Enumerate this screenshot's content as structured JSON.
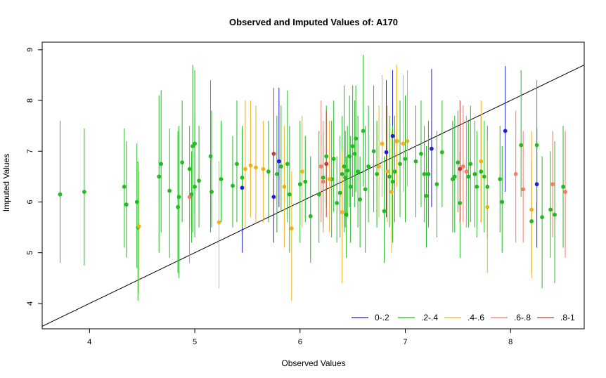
{
  "chart_data": {
    "type": "scatter",
    "title": "Observed and Imputed Values of: A170",
    "xlabel": "Observed Values",
    "ylabel": "Imputed Values",
    "xlim": [
      3.55,
      8.7
    ],
    "ylim": [
      3.5,
      9.15
    ],
    "xticks": [
      "4",
      "5",
      "6",
      "7",
      "8"
    ],
    "yticks": [
      "4",
      "5",
      "6",
      "7",
      "8",
      "9"
    ],
    "reference_line": {
      "intercept": 0,
      "slope": 1,
      "color": "#000000"
    },
    "legend": {
      "position": "bottom-right"
    },
    "series": [
      {
        "name": "0-.2",
        "color": "#1f1fd6",
        "points": [
          [
            5.45,
            6.28,
            5.0,
            7.4
          ],
          [
            5.75,
            6.1,
            5.2,
            7.0
          ],
          [
            5.8,
            6.8,
            5.9,
            8.25
          ],
          [
            6.82,
            6.98,
            5.7,
            8.4
          ],
          [
            6.88,
            7.3,
            6.2,
            8.6
          ],
          [
            6.92,
            7.2,
            6.3,
            8.5
          ],
          [
            7.25,
            7.05,
            5.9,
            8.62
          ],
          [
            7.95,
            7.4,
            6.2,
            8.68
          ],
          [
            8.25,
            6.35,
            5.1,
            7.45
          ]
        ]
      },
      {
        "name": ".2-.4",
        "color": "#22bb22",
        "points": [
          [
            3.72,
            6.15,
            4.8,
            7.6
          ],
          [
            3.95,
            6.2,
            4.75,
            7.45
          ],
          [
            4.33,
            6.3,
            5.1,
            7.45
          ],
          [
            4.35,
            5.95,
            4.9,
            7.2
          ],
          [
            4.45,
            6.0,
            4.7,
            7.15
          ],
          [
            4.46,
            5.5,
            4.05,
            6.8
          ],
          [
            4.66,
            6.5,
            5.0,
            8.1
          ],
          [
            4.68,
            6.75,
            5.4,
            8.2
          ],
          [
            4.76,
            6.22,
            4.9,
            7.45
          ],
          [
            4.84,
            5.9,
            4.6,
            7.4
          ],
          [
            4.85,
            6.1,
            4.5,
            7.5
          ],
          [
            4.88,
            6.78,
            5.6,
            8.0
          ],
          [
            4.95,
            6.65,
            5.5,
            7.5
          ],
          [
            4.97,
            6.15,
            5.2,
            7.0
          ],
          [
            4.98,
            7.1,
            5.4,
            8.7
          ],
          [
            5.0,
            7.15,
            5.8,
            8.6
          ],
          [
            5.0,
            6.3,
            5.3,
            7.7
          ],
          [
            5.04,
            6.42,
            5.5,
            7.5
          ],
          [
            5.15,
            6.9,
            5.4,
            8.4
          ],
          [
            5.16,
            6.2,
            5.5,
            7.8
          ],
          [
            5.25,
            6.45,
            5.6,
            7.6
          ],
          [
            5.36,
            6.32,
            5.5,
            7.3
          ],
          [
            5.4,
            6.75,
            5.6,
            8.0
          ],
          [
            5.45,
            6.48,
            5.5,
            7.5
          ],
          [
            5.7,
            6.6,
            5.6,
            7.6
          ],
          [
            5.78,
            6.55,
            5.4,
            7.7
          ],
          [
            5.82,
            6.7,
            5.8,
            7.9
          ],
          [
            5.88,
            6.75,
            5.6,
            8.2
          ],
          [
            5.9,
            6.15,
            5.0,
            7.5
          ],
          [
            6.0,
            6.35,
            5.2,
            7.6
          ],
          [
            6.05,
            6.4,
            5.6,
            7.3
          ],
          [
            6.1,
            5.72,
            4.8,
            6.9
          ],
          [
            6.18,
            6.15,
            5.2,
            7.4
          ],
          [
            6.22,
            6.48,
            5.5,
            7.4
          ],
          [
            6.25,
            6.9,
            5.9,
            7.9
          ],
          [
            6.3,
            6.45,
            5.3,
            7.6
          ],
          [
            6.32,
            6.85,
            5.8,
            8.0
          ],
          [
            6.35,
            5.98,
            5.2,
            6.9
          ],
          [
            6.38,
            6.18,
            5.3,
            7.3
          ],
          [
            6.4,
            6.55,
            5.5,
            7.7
          ],
          [
            6.42,
            6.7,
            5.4,
            8.3
          ],
          [
            6.43,
            6.48,
            5.5,
            7.4
          ],
          [
            6.44,
            5.75,
            4.9,
            6.9
          ],
          [
            6.45,
            6.62,
            5.7,
            7.5
          ],
          [
            6.47,
            6.9,
            5.9,
            8.1
          ],
          [
            6.48,
            6.3,
            5.2,
            7.3
          ],
          [
            6.5,
            7.1,
            6.1,
            8.3
          ],
          [
            6.52,
            6.95,
            5.9,
            8.0
          ],
          [
            6.53,
            7.25,
            6.2,
            8.3
          ],
          [
            6.55,
            6.6,
            5.5,
            7.7
          ],
          [
            6.57,
            6.05,
            5.1,
            6.9
          ],
          [
            6.6,
            7.4,
            6.3,
            8.9
          ],
          [
            6.62,
            6.25,
            5.0,
            7.5
          ],
          [
            6.65,
            6.7,
            5.6,
            7.9
          ],
          [
            6.7,
            7.0,
            5.8,
            8.3
          ],
          [
            6.73,
            6.55,
            5.5,
            7.6
          ],
          [
            6.8,
            5.82,
            4.8,
            6.9
          ],
          [
            6.85,
            6.5,
            5.5,
            7.7
          ],
          [
            6.88,
            6.4,
            5.2,
            7.5
          ],
          [
            6.9,
            6.6,
            5.6,
            7.7
          ],
          [
            6.95,
            6.75,
            5.7,
            8.0
          ],
          [
            7.0,
            6.85,
            5.6,
            8.1
          ],
          [
            7.1,
            6.8,
            5.7,
            7.9
          ],
          [
            7.15,
            6.95,
            5.9,
            8.0
          ],
          [
            7.18,
            6.55,
            5.6,
            7.5
          ],
          [
            7.2,
            6.12,
            5.1,
            7.1
          ],
          [
            7.22,
            6.55,
            5.5,
            7.6
          ],
          [
            7.3,
            6.35,
            5.3,
            7.4
          ],
          [
            7.35,
            6.98,
            5.9,
            8.0
          ],
          [
            7.45,
            6.45,
            5.4,
            7.6
          ],
          [
            7.47,
            6.5,
            5.4,
            7.7
          ],
          [
            7.5,
            6.78,
            5.8,
            7.8
          ],
          [
            7.52,
            5.98,
            4.9,
            7.0
          ],
          [
            7.6,
            6.5,
            5.5,
            7.6
          ],
          [
            7.62,
            6.75,
            5.6,
            7.9
          ],
          [
            7.66,
            6.55,
            5.5,
            7.6
          ],
          [
            7.68,
            6.3,
            5.3,
            7.4
          ],
          [
            7.72,
            6.6,
            5.6,
            7.7
          ],
          [
            7.75,
            6.5,
            5.4,
            7.6
          ],
          [
            7.78,
            6.3,
            5.3,
            7.5
          ],
          [
            7.9,
            6.45,
            5.4,
            7.5
          ],
          [
            7.92,
            6.0,
            5.0,
            7.1
          ],
          [
            8.1,
            7.12,
            6.1,
            8.6
          ],
          [
            8.2,
            5.62,
            4.6,
            6.8
          ],
          [
            8.25,
            7.12,
            6.0,
            8.4
          ],
          [
            8.3,
            5.7,
            4.3,
            6.9
          ],
          [
            8.38,
            5.85,
            4.9,
            7.0
          ],
          [
            8.42,
            5.75,
            4.4,
            7.2
          ],
          [
            8.5,
            6.3,
            5.1,
            7.5
          ]
        ]
      },
      {
        "name": ".4-.6",
        "color": "#f2b01e",
        "points": [
          [
            4.47,
            5.52,
            4.2,
            6.6
          ],
          [
            5.23,
            5.6,
            4.3,
            6.8
          ],
          [
            5.48,
            6.65,
            5.5,
            8.0
          ],
          [
            5.53,
            6.72,
            5.7,
            8.0
          ],
          [
            5.58,
            6.68,
            5.6,
            7.9
          ],
          [
            5.65,
            6.65,
            5.6,
            7.6
          ],
          [
            5.85,
            6.3,
            5.1,
            7.5
          ],
          [
            5.92,
            5.48,
            4.05,
            6.6
          ],
          [
            6.02,
            6.6,
            5.5,
            7.7
          ],
          [
            6.28,
            6.45,
            5.4,
            7.6
          ],
          [
            6.4,
            5.8,
            4.4,
            7.0
          ],
          [
            6.75,
            6.7,
            5.7,
            7.9
          ],
          [
            6.78,
            7.15,
            6.1,
            8.5
          ],
          [
            6.83,
            6.6,
            5.6,
            7.9
          ],
          [
            6.87,
            6.2,
            5.0,
            7.4
          ],
          [
            6.92,
            7.2,
            6.3,
            8.7
          ],
          [
            6.98,
            7.15,
            6.2,
            8.5
          ],
          [
            7.02,
            7.2,
            6.3,
            8.6
          ],
          [
            7.72,
            6.8,
            5.6,
            8.0
          ],
          [
            7.78,
            5.9,
            4.6,
            7.2
          ],
          [
            8.2,
            5.85,
            4.5,
            7.4
          ]
        ]
      },
      {
        "name": ".6-.8",
        "color": "#f07c6c",
        "points": [
          [
            4.95,
            6.1,
            4.8,
            7.5
          ],
          [
            6.2,
            6.7,
            5.6,
            8.0
          ],
          [
            6.22,
            6.4,
            5.4,
            7.6
          ],
          [
            7.55,
            6.7,
            5.6,
            7.9
          ],
          [
            7.58,
            6.6,
            5.5,
            7.7
          ],
          [
            8.05,
            6.55,
            5.2,
            7.8
          ],
          [
            8.12,
            6.25,
            5.2,
            7.4
          ],
          [
            8.4,
            6.35,
            5.3,
            7.4
          ],
          [
            8.52,
            6.2,
            4.9,
            7.4
          ]
        ]
      },
      {
        "name": ".8-1",
        "color": "#c43a34",
        "points": [
          [
            5.75,
            6.95,
            5.8,
            8.25
          ],
          [
            6.25,
            6.75,
            5.7,
            7.8
          ],
          [
            7.52,
            6.65,
            5.6,
            8.0
          ]
        ]
      }
    ]
  }
}
